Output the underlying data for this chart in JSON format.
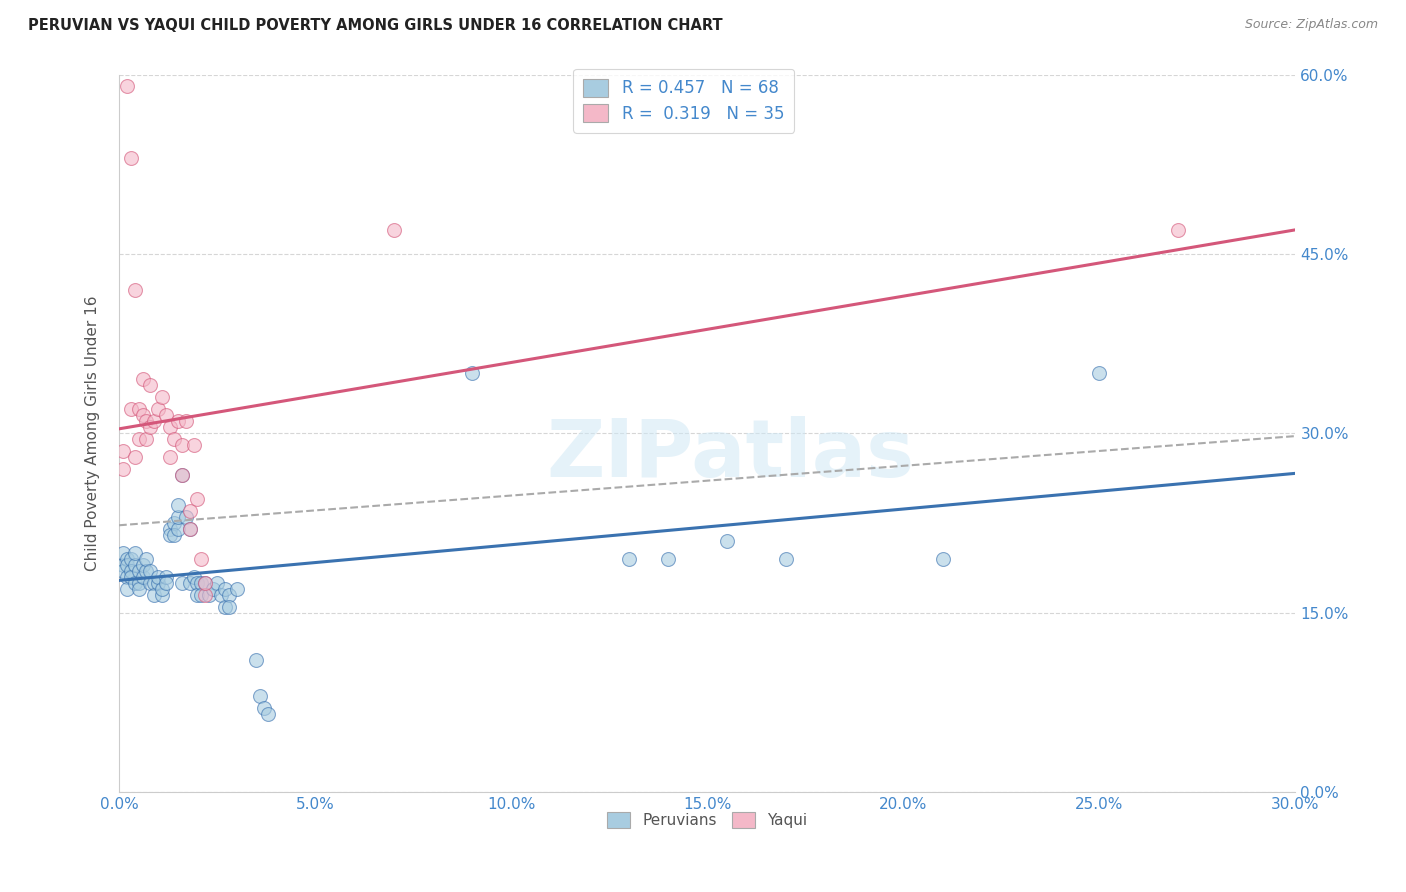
{
  "title": "PERUVIAN VS YAQUI CHILD POVERTY AMONG GIRLS UNDER 16 CORRELATION CHART",
  "source": "Source: ZipAtlas.com",
  "ylabel_label": "Child Poverty Among Girls Under 16",
  "watermark": "ZIPatlas",
  "legend_r1": "R = 0.457   N = 68",
  "legend_r2": "R =  0.319   N = 35",
  "peruvian_color": "#a8cce0",
  "yaqui_color": "#f4b8c8",
  "peruvian_line_color": "#3a72b0",
  "yaqui_line_color": "#d4577a",
  "trend_line_color": "#bbbbbb",
  "xlim": [
    0.0,
    0.3
  ],
  "ylim": [
    0.0,
    0.6
  ],
  "x_tick_vals": [
    0.0,
    0.05,
    0.1,
    0.15,
    0.2,
    0.25,
    0.3
  ],
  "x_tick_labels": [
    "0.0%",
    "5.0%",
    "10.0%",
    "15.0%",
    "20.0%",
    "25.0%",
    "30.0%"
  ],
  "y_tick_vals": [
    0.0,
    0.15,
    0.3,
    0.45,
    0.6
  ],
  "y_tick_labels": [
    "0.0%",
    "15.0%",
    "30.0%",
    "45.0%",
    "60.0%"
  ],
  "peruvian_scatter": [
    [
      0.001,
      0.19
    ],
    [
      0.001,
      0.2
    ],
    [
      0.001,
      0.185
    ],
    [
      0.002,
      0.195
    ],
    [
      0.002,
      0.18
    ],
    [
      0.002,
      0.19
    ],
    [
      0.002,
      0.17
    ],
    [
      0.003,
      0.195
    ],
    [
      0.003,
      0.185
    ],
    [
      0.003,
      0.18
    ],
    [
      0.004,
      0.19
    ],
    [
      0.004,
      0.2
    ],
    [
      0.004,
      0.175
    ],
    [
      0.005,
      0.185
    ],
    [
      0.005,
      0.175
    ],
    [
      0.005,
      0.17
    ],
    [
      0.006,
      0.18
    ],
    [
      0.006,
      0.19
    ],
    [
      0.007,
      0.185
    ],
    [
      0.007,
      0.195
    ],
    [
      0.008,
      0.175
    ],
    [
      0.008,
      0.185
    ],
    [
      0.009,
      0.175
    ],
    [
      0.009,
      0.165
    ],
    [
      0.01,
      0.175
    ],
    [
      0.01,
      0.18
    ],
    [
      0.011,
      0.165
    ],
    [
      0.011,
      0.17
    ],
    [
      0.012,
      0.18
    ],
    [
      0.012,
      0.175
    ],
    [
      0.013,
      0.22
    ],
    [
      0.013,
      0.215
    ],
    [
      0.014,
      0.225
    ],
    [
      0.014,
      0.215
    ],
    [
      0.015,
      0.22
    ],
    [
      0.015,
      0.23
    ],
    [
      0.015,
      0.24
    ],
    [
      0.016,
      0.265
    ],
    [
      0.016,
      0.175
    ],
    [
      0.017,
      0.23
    ],
    [
      0.018,
      0.22
    ],
    [
      0.018,
      0.175
    ],
    [
      0.019,
      0.18
    ],
    [
      0.02,
      0.175
    ],
    [
      0.02,
      0.165
    ],
    [
      0.021,
      0.175
    ],
    [
      0.021,
      0.165
    ],
    [
      0.022,
      0.175
    ],
    [
      0.023,
      0.165
    ],
    [
      0.024,
      0.17
    ],
    [
      0.025,
      0.175
    ],
    [
      0.026,
      0.165
    ],
    [
      0.027,
      0.17
    ],
    [
      0.027,
      0.155
    ],
    [
      0.028,
      0.165
    ],
    [
      0.028,
      0.155
    ],
    [
      0.03,
      0.17
    ],
    [
      0.035,
      0.11
    ],
    [
      0.036,
      0.08
    ],
    [
      0.037,
      0.07
    ],
    [
      0.038,
      0.065
    ],
    [
      0.09,
      0.35
    ],
    [
      0.13,
      0.195
    ],
    [
      0.14,
      0.195
    ],
    [
      0.155,
      0.21
    ],
    [
      0.17,
      0.195
    ],
    [
      0.21,
      0.195
    ],
    [
      0.25,
      0.35
    ]
  ],
  "yaqui_scatter": [
    [
      0.001,
      0.27
    ],
    [
      0.001,
      0.285
    ],
    [
      0.002,
      0.59
    ],
    [
      0.003,
      0.53
    ],
    [
      0.003,
      0.32
    ],
    [
      0.004,
      0.28
    ],
    [
      0.004,
      0.42
    ],
    [
      0.005,
      0.295
    ],
    [
      0.005,
      0.32
    ],
    [
      0.006,
      0.315
    ],
    [
      0.006,
      0.345
    ],
    [
      0.007,
      0.31
    ],
    [
      0.007,
      0.295
    ],
    [
      0.008,
      0.305
    ],
    [
      0.008,
      0.34
    ],
    [
      0.009,
      0.31
    ],
    [
      0.01,
      0.32
    ],
    [
      0.011,
      0.33
    ],
    [
      0.012,
      0.315
    ],
    [
      0.013,
      0.305
    ],
    [
      0.013,
      0.28
    ],
    [
      0.014,
      0.295
    ],
    [
      0.015,
      0.31
    ],
    [
      0.016,
      0.29
    ],
    [
      0.016,
      0.265
    ],
    [
      0.017,
      0.31
    ],
    [
      0.018,
      0.235
    ],
    [
      0.018,
      0.22
    ],
    [
      0.019,
      0.29
    ],
    [
      0.02,
      0.245
    ],
    [
      0.021,
      0.195
    ],
    [
      0.022,
      0.165
    ],
    [
      0.022,
      0.175
    ],
    [
      0.07,
      0.47
    ],
    [
      0.27,
      0.47
    ]
  ]
}
